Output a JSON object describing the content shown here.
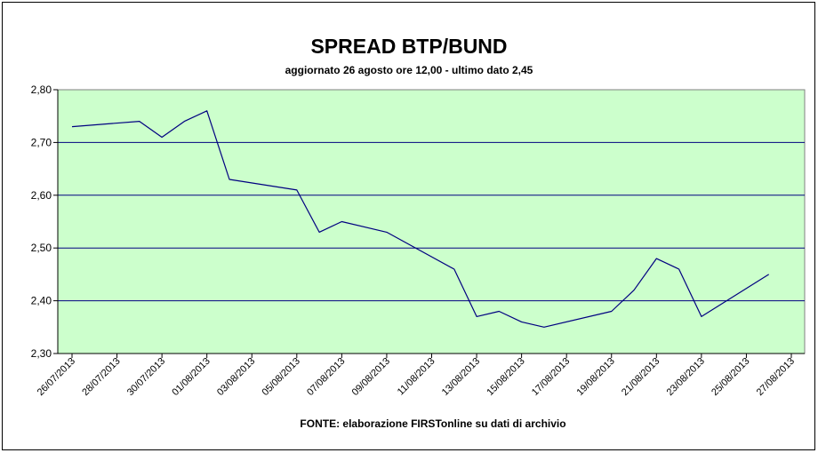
{
  "chart_data": {
    "type": "line",
    "title": "SPREAD BTP/BUND",
    "subtitle": "aggiornato 26 agosto ore 12,00 - ultimo dato 2,45",
    "source": "FONTE:  elaborazione FIRSTonline su dati di archivio",
    "xlabel": "",
    "ylabel": "",
    "ylim": [
      2.3,
      2.8
    ],
    "y_ticks": [
      "2,30",
      "2,40",
      "2,50",
      "2,60",
      "2,70",
      "2,80"
    ],
    "x_ticks": [
      "26/07/2013",
      "28/07/2013",
      "30/07/2013",
      "01/08/2013",
      "03/08/2013",
      "05/08/2013",
      "07/08/2013",
      "09/08/2013",
      "11/08/2013",
      "13/08/2013",
      "15/08/2013",
      "17/08/2013",
      "19/08/2013",
      "21/08/2013",
      "23/08/2013",
      "25/08/2013",
      "27/08/2013"
    ],
    "grid": true,
    "legend": "none",
    "colors": {
      "plot_background": "#ccffcc",
      "line": "#000080",
      "grid": "#000080"
    },
    "series": [
      {
        "values": [
          {
            "x": "26/07/2013",
            "y": 2.73
          },
          {
            "x": "29/07/2013",
            "y": 2.74
          },
          {
            "x": "30/07/2013",
            "y": 2.71
          },
          {
            "x": "31/07/2013",
            "y": 2.74
          },
          {
            "x": "01/08/2013",
            "y": 2.76
          },
          {
            "x": "02/08/2013",
            "y": 2.63
          },
          {
            "x": "05/08/2013",
            "y": 2.61
          },
          {
            "x": "06/08/2013",
            "y": 2.53
          },
          {
            "x": "07/08/2013",
            "y": 2.55
          },
          {
            "x": "09/08/2013",
            "y": 2.53
          },
          {
            "x": "12/08/2013",
            "y": 2.46
          },
          {
            "x": "13/08/2013",
            "y": 2.37
          },
          {
            "x": "14/08/2013",
            "y": 2.38
          },
          {
            "x": "15/08/2013",
            "y": 2.36
          },
          {
            "x": "16/08/2013",
            "y": 2.35
          },
          {
            "x": "19/08/2013",
            "y": 2.38
          },
          {
            "x": "20/08/2013",
            "y": 2.42
          },
          {
            "x": "21/08/2013",
            "y": 2.48
          },
          {
            "x": "22/08/2013",
            "y": 2.46
          },
          {
            "x": "23/08/2013",
            "y": 2.37
          },
          {
            "x": "26/08/2013",
            "y": 2.45
          }
        ]
      }
    ]
  }
}
